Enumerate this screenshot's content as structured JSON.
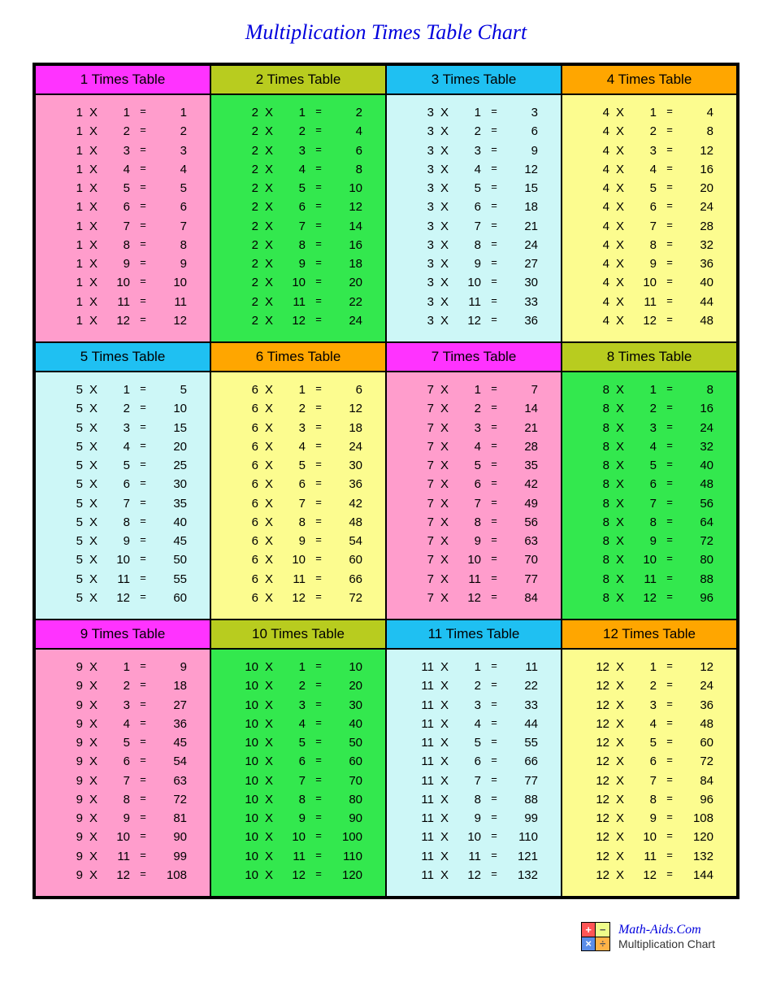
{
  "title": "Multiplication Times Table Chart",
  "footer": {
    "site": "Math-Aids.Com",
    "label": "Multiplication Chart"
  },
  "colors": {
    "magenta": "#ff33ff",
    "olive": "#b8cc1f",
    "cyan": "#1fc0f2",
    "orange": "#ffa600",
    "pink_body": "#ff9dcc",
    "green_body": "#33e84e",
    "ltcyan_body": "#cdf7f7",
    "yellow_body": "#fcfc8f"
  },
  "grid": {
    "cols": 4,
    "rows": 3,
    "multipliers_per_panel": 12
  },
  "panels": [
    {
      "n": 1,
      "title": "1 Times Table",
      "header_color": "#ff33ff",
      "body_color": "#ff9dcc"
    },
    {
      "n": 2,
      "title": "2 Times Table",
      "header_color": "#b8cc1f",
      "body_color": "#33e84e"
    },
    {
      "n": 3,
      "title": "3 Times Table",
      "header_color": "#1fc0f2",
      "body_color": "#cdf7f7"
    },
    {
      "n": 4,
      "title": "4 Times Table",
      "header_color": "#ffa600",
      "body_color": "#fcfc8f"
    },
    {
      "n": 5,
      "title": "5 Times Table",
      "header_color": "#1fc0f2",
      "body_color": "#cdf7f7"
    },
    {
      "n": 6,
      "title": "6 Times Table",
      "header_color": "#ffa600",
      "body_color": "#fcfc8f"
    },
    {
      "n": 7,
      "title": "7 Times Table",
      "header_color": "#ff33ff",
      "body_color": "#ff9dcc"
    },
    {
      "n": 8,
      "title": "8 Times Table",
      "header_color": "#b8cc1f",
      "body_color": "#33e84e"
    },
    {
      "n": 9,
      "title": "9 Times Table",
      "header_color": "#ff33ff",
      "body_color": "#ff9dcc"
    },
    {
      "n": 10,
      "title": "10 Times Table",
      "header_color": "#b8cc1f",
      "body_color": "#33e84e"
    },
    {
      "n": 11,
      "title": "11 Times Table",
      "header_color": "#1fc0f2",
      "body_color": "#cdf7f7"
    },
    {
      "n": 12,
      "title": "12 Times Table",
      "header_color": "#ffa600",
      "body_color": "#fcfc8f"
    }
  ]
}
